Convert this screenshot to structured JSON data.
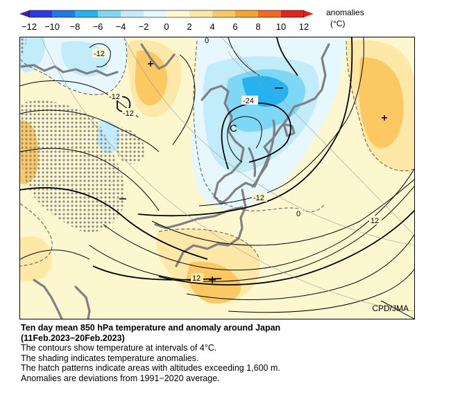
{
  "colorbar": {
    "ticks": [
      "−12",
      "−10",
      "−8",
      "−6",
      "−4",
      "−2",
      "0",
      "2",
      "4",
      "6",
      "8",
      "10",
      "12"
    ],
    "label_line1": "anomalies",
    "label_line2": "(°C)",
    "colors": [
      "#2b3be8",
      "#1f7be8",
      "#25b2f0",
      "#7ed8f5",
      "#c3ecfb",
      "#e6f8fd",
      "#fdf8d2",
      "#fde8a8",
      "#fbc862",
      "#f7a331",
      "#f26a1f",
      "#e2231a"
    ]
  },
  "map": {
    "contour_labels": {
      "c1": "-12",
      "c2": "-12",
      "c3": "-12",
      "c4": "-24",
      "c5": "-12",
      "c6": "0",
      "c7": "0",
      "c8": "12",
      "c9": "12"
    },
    "center_marks": {
      "cold_center": "C"
    },
    "credit": "CPD/JMA"
  },
  "caption": {
    "title_line1": "Ten day mean 850 hPa temperature and anomaly around Japan",
    "title_line2": "(11Feb.2023−20Feb.2023)",
    "line1": "The contours show temperature at intervals of 4°C.",
    "line2": "The shading indicates temperature anomalies.",
    "line3": "The hatch patterns indicate areas with altitudes exceeding 1,600 m.",
    "line4": "Anomalies are deviations from 1991−2020 average."
  }
}
